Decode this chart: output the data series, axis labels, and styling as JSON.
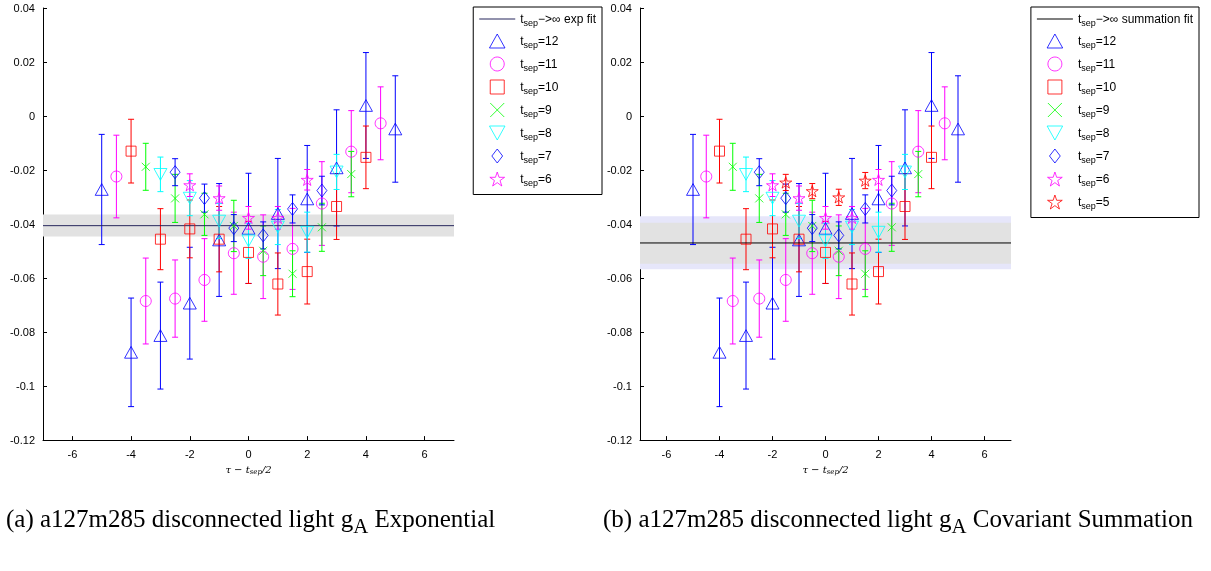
{
  "chart_data": [
    {
      "type": "scatter",
      "xlabel": "τ − t$_{sep}$/2",
      "xlim": [
        -7,
        7
      ],
      "xticks": [
        -6,
        -4,
        -2,
        0,
        2,
        4,
        6
      ],
      "ylim": [
        -0.12,
        0.04
      ],
      "yticks": [
        -0.12,
        -0.1,
        -0.08,
        -0.06,
        -0.04,
        -0.02,
        0,
        0.02,
        0.04
      ],
      "grid": false,
      "legend": "top right",
      "bands": [
        {
          "axis": "y",
          "from": -0.0446,
          "to": -0.0365,
          "color": "#e2e2e2"
        }
      ],
      "series": [
        {
          "type": "line",
          "name": "t$_{sep}$−>∞ exp fit",
          "color": "#26265c",
          "x": [
            -7,
            7
          ],
          "values": [
            -0.0406,
            -0.0406
          ],
          "marker": "none",
          "line_style": "solid"
        },
        {
          "name": "t$_{sep}$=12",
          "color": "#0000ff",
          "marker": "triangle",
          "x": [
            -5,
            -4,
            -3,
            -2,
            -1,
            0,
            1,
            2,
            3,
            4,
            5
          ],
          "values": [
            -0.0272,
            -0.0875,
            -0.0813,
            -0.0693,
            -0.0459,
            -0.0416,
            -0.0361,
            -0.0307,
            -0.0192,
            0.0039,
            -0.0048
          ],
          "errors": [
            0.0204,
            0.0201,
            0.0198,
            0.0207,
            0.0209,
            0.0204,
            0.0204,
            0.0198,
            0.0215,
            0.0196,
            0.0197
          ]
        },
        {
          "name": "t$_{sep}$=11",
          "color": "#ff00ff",
          "marker": "circle",
          "x": [
            -4.5,
            -3.5,
            -2.5,
            -1.5,
            -0.5,
            0.5,
            1.5,
            2.5,
            3.5,
            4.5
          ],
          "values": [
            -0.0224,
            -0.0685,
            -0.0676,
            -0.0607,
            -0.0508,
            -0.0521,
            -0.0492,
            -0.0324,
            -0.0132,
            -0.0027
          ],
          "errors": [
            0.0153,
            0.0159,
            0.0143,
            0.0153,
            0.0152,
            0.0155,
            0.015,
            0.0155,
            0.0152,
            0.0135
          ]
        },
        {
          "name": "t$_{sep}$=10",
          "color": "#ff0000",
          "marker": "square",
          "x": [
            -4,
            -3,
            -2,
            -1,
            0,
            1,
            2,
            3,
            4
          ],
          "values": [
            -0.013,
            -0.0456,
            -0.0418,
            -0.0456,
            -0.0505,
            -0.0622,
            -0.0576,
            -0.0335,
            -0.0153
          ],
          "errors": [
            0.0118,
            0.0113,
            0.0107,
            0.0121,
            0.0115,
            0.0115,
            0.012,
            0.0122,
            0.0116
          ]
        },
        {
          "name": "t$_{sep}$=9",
          "color": "#00ff00",
          "marker": "cross",
          "x": [
            -3.5,
            -2.5,
            -1.5,
            -0.5,
            0.5,
            1.5,
            2.5,
            3.5
          ],
          "values": [
            -0.0188,
            -0.0305,
            -0.0364,
            -0.0407,
            -0.0499,
            -0.0584,
            -0.0412,
            -0.0215
          ],
          "errors": [
            0.0087,
            0.0089,
            0.0078,
            0.0095,
            0.0092,
            0.0085,
            0.0089,
            0.0084
          ]
        },
        {
          "name": "t$_{sep}$=8",
          "color": "#00ffff",
          "marker": "triangle-down",
          "x": [
            -3,
            -2,
            -1,
            0,
            1,
            2,
            3
          ],
          "values": [
            -0.0216,
            -0.0304,
            -0.0389,
            -0.0462,
            -0.0411,
            -0.043,
            -0.0207
          ],
          "errors": [
            0.0064,
            0.0065,
            0.0065,
            0.0065,
            0.0065,
            0.0074,
            0.0065
          ]
        },
        {
          "name": "t$_{sep}$=7",
          "color": "#0000ff",
          "marker": "diamond",
          "x": [
            -2.5,
            -1.5,
            -0.5,
            0.5,
            1.5,
            2.5
          ],
          "values": [
            -0.0208,
            -0.0304,
            -0.0415,
            -0.0442,
            -0.0344,
            -0.0276
          ],
          "errors": [
            0.005,
            0.0052,
            0.005,
            0.005,
            0.0052,
            0.0053
          ]
        },
        {
          "name": "t$_{sep}$=6",
          "color": "#ff00ff",
          "marker": "star",
          "x": [
            -2,
            -1,
            0,
            1,
            2
          ],
          "values": [
            -0.0256,
            -0.0304,
            -0.0377,
            -0.0377,
            -0.0236
          ],
          "errors": [
            0.0042,
            0.0045,
            0.0042,
            0.0042,
            0.0038
          ]
        }
      ],
      "annotations": [
        "(a) a127m285 disconnected light g$_{A}$ Exponential"
      ]
    },
    {
      "type": "scatter",
      "xlabel": "τ − t$_{sep}$/2",
      "xlim": [
        -7,
        7
      ],
      "xticks": [
        -6,
        -4,
        -2,
        0,
        2,
        4,
        6
      ],
      "ylim": [
        -0.12,
        0.04
      ],
      "yticks": [
        -0.12,
        -0.1,
        -0.08,
        -0.06,
        -0.04,
        -0.02,
        0,
        0.02,
        0.04
      ],
      "grid": false,
      "legend": "top right",
      "bands": [
        {
          "axis": "y",
          "from": -0.0567,
          "to": -0.0371,
          "color": "#e6e6fa"
        },
        {
          "axis": "y",
          "from": -0.0547,
          "to": -0.0395,
          "color": "#e2e2e2"
        }
      ],
      "series": [
        {
          "type": "line",
          "name": "t$_{sep}$−>∞ summation fit",
          "color": "#000000",
          "x": [
            -7,
            7
          ],
          "values": [
            -0.047,
            -0.047
          ],
          "marker": "none",
          "line_style": "solid"
        },
        {
          "name": "t$_{sep}$=12",
          "color": "#0000ff",
          "marker": "triangle",
          "x": [
            -5,
            -4,
            -3,
            -2,
            -1,
            0,
            1,
            2,
            3,
            4,
            5
          ],
          "values": [
            -0.0272,
            -0.0875,
            -0.0813,
            -0.0693,
            -0.0459,
            -0.0416,
            -0.0361,
            -0.0307,
            -0.0192,
            0.0039,
            -0.0048
          ],
          "errors": [
            0.0204,
            0.0201,
            0.0198,
            0.0207,
            0.0209,
            0.0204,
            0.0204,
            0.0198,
            0.0215,
            0.0196,
            0.0197
          ]
        },
        {
          "name": "t$_{sep}$=11",
          "color": "#ff00ff",
          "marker": "circle",
          "x": [
            -4.5,
            -3.5,
            -2.5,
            -1.5,
            -0.5,
            0.5,
            1.5,
            2.5,
            3.5,
            4.5
          ],
          "values": [
            -0.0224,
            -0.0685,
            -0.0676,
            -0.0607,
            -0.0508,
            -0.0521,
            -0.0492,
            -0.0324,
            -0.0132,
            -0.0027
          ],
          "errors": [
            0.0153,
            0.0159,
            0.0143,
            0.0153,
            0.0152,
            0.0155,
            0.015,
            0.0155,
            0.0152,
            0.0135
          ]
        },
        {
          "name": "t$_{sep}$=10",
          "color": "#ff0000",
          "marker": "square",
          "x": [
            -4,
            -3,
            -2,
            -1,
            0,
            1,
            2,
            3,
            4
          ],
          "values": [
            -0.013,
            -0.0456,
            -0.0418,
            -0.0456,
            -0.0505,
            -0.0622,
            -0.0576,
            -0.0335,
            -0.0153
          ],
          "errors": [
            0.0118,
            0.0113,
            0.0107,
            0.0121,
            0.0115,
            0.0115,
            0.012,
            0.0122,
            0.0116
          ]
        },
        {
          "name": "t$_{sep}$=9",
          "color": "#00ff00",
          "marker": "cross",
          "x": [
            -3.5,
            -2.5,
            -1.5,
            -0.5,
            0.5,
            1.5,
            2.5,
            3.5
          ],
          "values": [
            -0.0188,
            -0.0305,
            -0.0364,
            -0.0407,
            -0.0499,
            -0.0584,
            -0.0412,
            -0.0215
          ],
          "errors": [
            0.0087,
            0.0089,
            0.0078,
            0.0095,
            0.0092,
            0.0085,
            0.0089,
            0.0084
          ]
        },
        {
          "name": "t$_{sep}$=8",
          "color": "#00ffff",
          "marker": "triangle-down",
          "x": [
            -3,
            -2,
            -1,
            0,
            1,
            2,
            3
          ],
          "values": [
            -0.0216,
            -0.0304,
            -0.0389,
            -0.0462,
            -0.0411,
            -0.043,
            -0.0207
          ],
          "errors": [
            0.0064,
            0.0065,
            0.0065,
            0.0065,
            0.0065,
            0.0074,
            0.0065
          ]
        },
        {
          "name": "t$_{sep}$=7",
          "color": "#0000ff",
          "marker": "diamond",
          "x": [
            -2.5,
            -1.5,
            -0.5,
            0.5,
            1.5,
            2.5
          ],
          "values": [
            -0.0208,
            -0.0304,
            -0.0415,
            -0.0442,
            -0.0344,
            -0.0276
          ],
          "errors": [
            0.005,
            0.0052,
            0.005,
            0.005,
            0.0052,
            0.0053
          ]
        },
        {
          "name": "t$_{sep}$=6",
          "color": "#ff00ff",
          "marker": "star",
          "x": [
            -2,
            -1,
            0,
            1,
            2
          ],
          "values": [
            -0.0256,
            -0.0304,
            -0.0377,
            -0.0377,
            -0.0236
          ],
          "errors": [
            0.0042,
            0.0045,
            0.0042,
            0.0042,
            0.0038
          ]
        },
        {
          "name": "t$_{sep}$=5",
          "color": "#ff0000",
          "marker": "star",
          "x": [
            -1.5,
            -0.5,
            0.5,
            1.5
          ],
          "values": [
            -0.0246,
            -0.0278,
            -0.0301,
            -0.0239
          ],
          "errors": [
            0.003,
            0.0028,
            0.003,
            0.003
          ]
        }
      ],
      "annotations": [
        "(b) a127m285 disconnected light g$_{A}$ Covariant Summation"
      ]
    }
  ]
}
